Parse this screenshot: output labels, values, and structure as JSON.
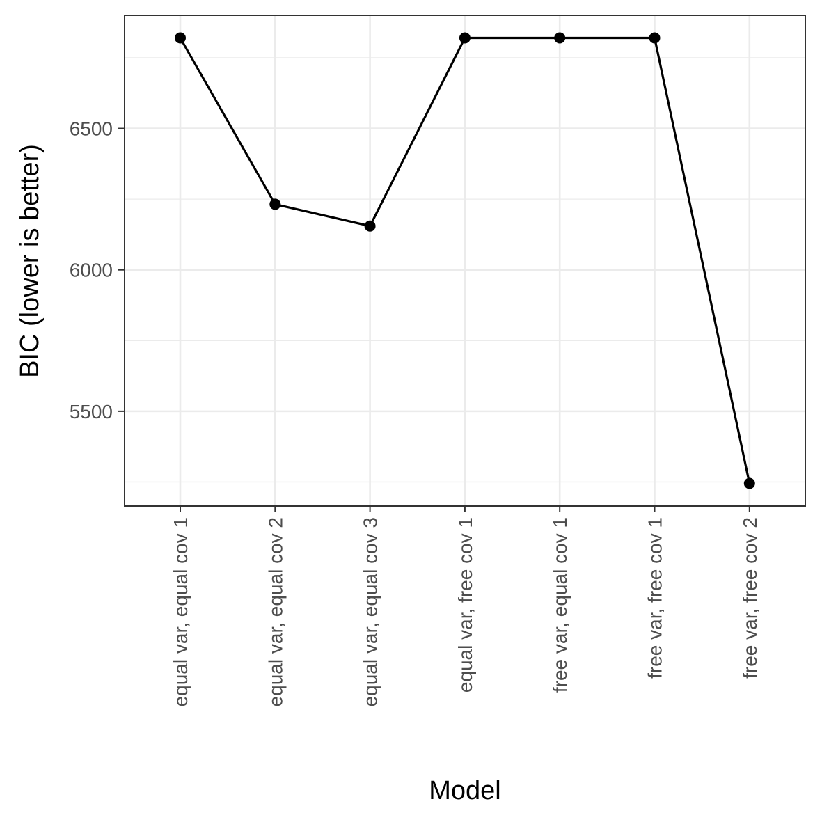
{
  "chart_data": {
    "type": "line",
    "title": "",
    "xlabel": "Model",
    "ylabel": "BIC (lower is better)",
    "categories": [
      "equal var, equal cov 1",
      "equal var, equal cov 2",
      "equal var, equal cov 3",
      "equal var, free cov 1",
      "free var, equal cov 1",
      "free var, free cov 1",
      "free var, free cov 2"
    ],
    "series": [
      {
        "values": [
          6820,
          6232,
          6155,
          6820,
          6820,
          6820,
          5245
        ]
      }
    ],
    "yticks": [
      5500,
      6000,
      6500
    ],
    "ytick_labels": [
      "5500",
      "6000",
      "6500"
    ],
    "ylim": [
      5165,
      6900
    ],
    "grid": true,
    "legend": "none",
    "colors": {
      "line": "#000000",
      "grid": "#ebebeb",
      "panel_border": "#333333",
      "background": "#ffffff"
    }
  }
}
